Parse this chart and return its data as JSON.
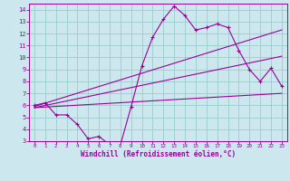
{
  "xlabel": "Windchill (Refroidissement éolien,°C)",
  "bg_color": "#cce8ee",
  "line_color": "#990099",
  "grid_color": "#99cccc",
  "xlim": [
    -0.5,
    23.5
  ],
  "ylim": [
    3,
    14.5
  ],
  "xticks": [
    0,
    1,
    2,
    3,
    4,
    5,
    6,
    7,
    8,
    9,
    10,
    11,
    12,
    13,
    14,
    15,
    16,
    17,
    18,
    19,
    20,
    21,
    22,
    23
  ],
  "yticks": [
    3,
    4,
    5,
    6,
    7,
    8,
    9,
    10,
    11,
    12,
    13,
    14
  ],
  "line1_x": [
    0,
    1,
    2,
    3,
    4,
    5,
    6,
    7,
    8,
    9,
    10,
    11,
    12,
    13,
    14,
    15,
    16,
    17,
    18,
    19,
    20,
    21,
    22,
    23
  ],
  "line1_y": [
    6.0,
    6.2,
    5.2,
    5.2,
    4.4,
    3.2,
    3.4,
    2.7,
    2.7,
    5.9,
    9.3,
    11.7,
    13.2,
    14.3,
    13.5,
    12.3,
    12.5,
    12.8,
    12.5,
    10.6,
    9.0,
    8.0,
    9.1,
    7.6
  ],
  "line2_x": [
    0,
    23
  ],
  "line2_y": [
    5.9,
    12.3
  ],
  "line3_x": [
    0,
    23
  ],
  "line3_y": [
    5.8,
    10.1
  ],
  "line4_x": [
    0,
    23
  ],
  "line4_y": [
    5.8,
    7.0
  ]
}
